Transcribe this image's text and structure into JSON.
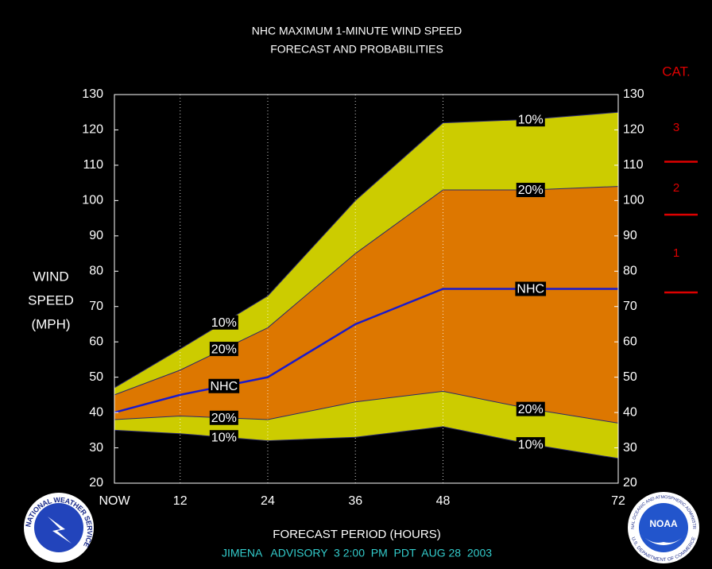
{
  "chart_data": {
    "type": "band",
    "title": "NHC MAXIMUM 1-MINUTE WIND SPEED",
    "subtitle": "FORECAST AND PROBABILITIES",
    "ylabel": [
      "WIND",
      "SPEED",
      "(MPH)"
    ],
    "xlabel": "FORECAST PERIOD (HOURS)",
    "footer": "JIMENA   ADVISORY  3 2:00  PM  PDT  AUG 28  2003",
    "x": [
      3,
      12,
      24,
      36,
      48,
      60,
      72
    ],
    "xlim": [
      3,
      72
    ],
    "xticks": [
      {
        "value": 3,
        "label": "NOW"
      },
      12,
      24,
      36,
      48,
      72
    ],
    "ylim": [
      20,
      130
    ],
    "yticks": [
      20,
      30,
      40,
      50,
      60,
      70,
      80,
      90,
      100,
      110,
      120,
      130
    ],
    "y2lim": [
      20,
      130
    ],
    "y2ticks": [
      20,
      30,
      40,
      50,
      60,
      70,
      80,
      90,
      100,
      110,
      120,
      130
    ],
    "grid": true,
    "series": [
      {
        "name": "10%",
        "color": "#2a2a6a",
        "values": [
          35,
          34,
          32,
          33,
          36,
          31,
          27
        ]
      },
      {
        "name": "20%",
        "color": "#2a2a6a",
        "values": [
          38,
          39,
          38,
          43,
          46,
          41,
          37
        ]
      },
      {
        "name": "NHC",
        "color": "#1a1acc",
        "values": [
          40,
          45,
          50,
          65,
          75,
          75,
          75
        ]
      },
      {
        "name": "20%",
        "color": "#2a2a6a",
        "values": [
          45,
          52,
          64,
          85,
          103,
          103,
          104
        ]
      },
      {
        "name": "10%",
        "color": "#2a2a6a",
        "values": [
          47,
          58,
          73,
          100,
          122,
          123,
          125
        ]
      }
    ],
    "bands": [
      {
        "color": "#cccc00"
      },
      {
        "color": "#dd7700"
      }
    ],
    "category_scale": {
      "title": "CAT.",
      "labels": [
        "3",
        "2",
        "1"
      ],
      "thresholds": [
        111,
        96,
        74
      ],
      "color": "#dd0000"
    },
    "logos": {
      "left": "NATIONAL WEATHER SERVICE",
      "right_center": "NOAA",
      "right_top": "NATIONAL OCEANIC AND ATMOSPHERIC ADMINISTRATION",
      "right_bottom": "U.S. DEPARTMENT OF COMMERCE"
    }
  }
}
